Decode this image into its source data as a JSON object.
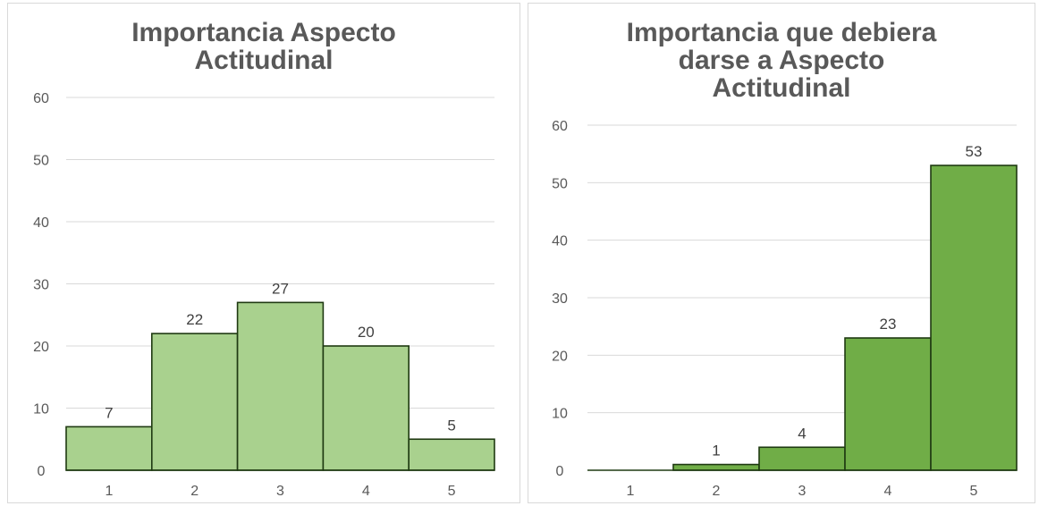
{
  "chart_data": [
    {
      "type": "bar",
      "title_lines": [
        "Importancia Aspecto",
        "Actitudinal"
      ],
      "categories": [
        "1",
        "2",
        "3",
        "4",
        "5"
      ],
      "values": [
        7,
        22,
        27,
        20,
        5
      ],
      "ylim": [
        0,
        60
      ],
      "yticks": [
        "0",
        "10",
        "20",
        "30",
        "40",
        "50",
        "60"
      ],
      "bar_color": "#a9d18e",
      "grid": true,
      "legend": "none"
    },
    {
      "type": "bar",
      "title_lines": [
        "Importancia que debiera",
        "darse a Aspecto",
        "Actitudinal"
      ],
      "categories": [
        "1",
        "2",
        "3",
        "4",
        "5"
      ],
      "values": [
        0,
        1,
        4,
        23,
        53
      ],
      "data_labels": [
        "",
        "1",
        "4",
        "23",
        "53"
      ],
      "ylim": [
        0,
        60
      ],
      "yticks": [
        "0",
        "10",
        "20",
        "30",
        "40",
        "50",
        "60"
      ],
      "bar_color": "#70ad47",
      "grid": true,
      "legend": "none"
    }
  ]
}
